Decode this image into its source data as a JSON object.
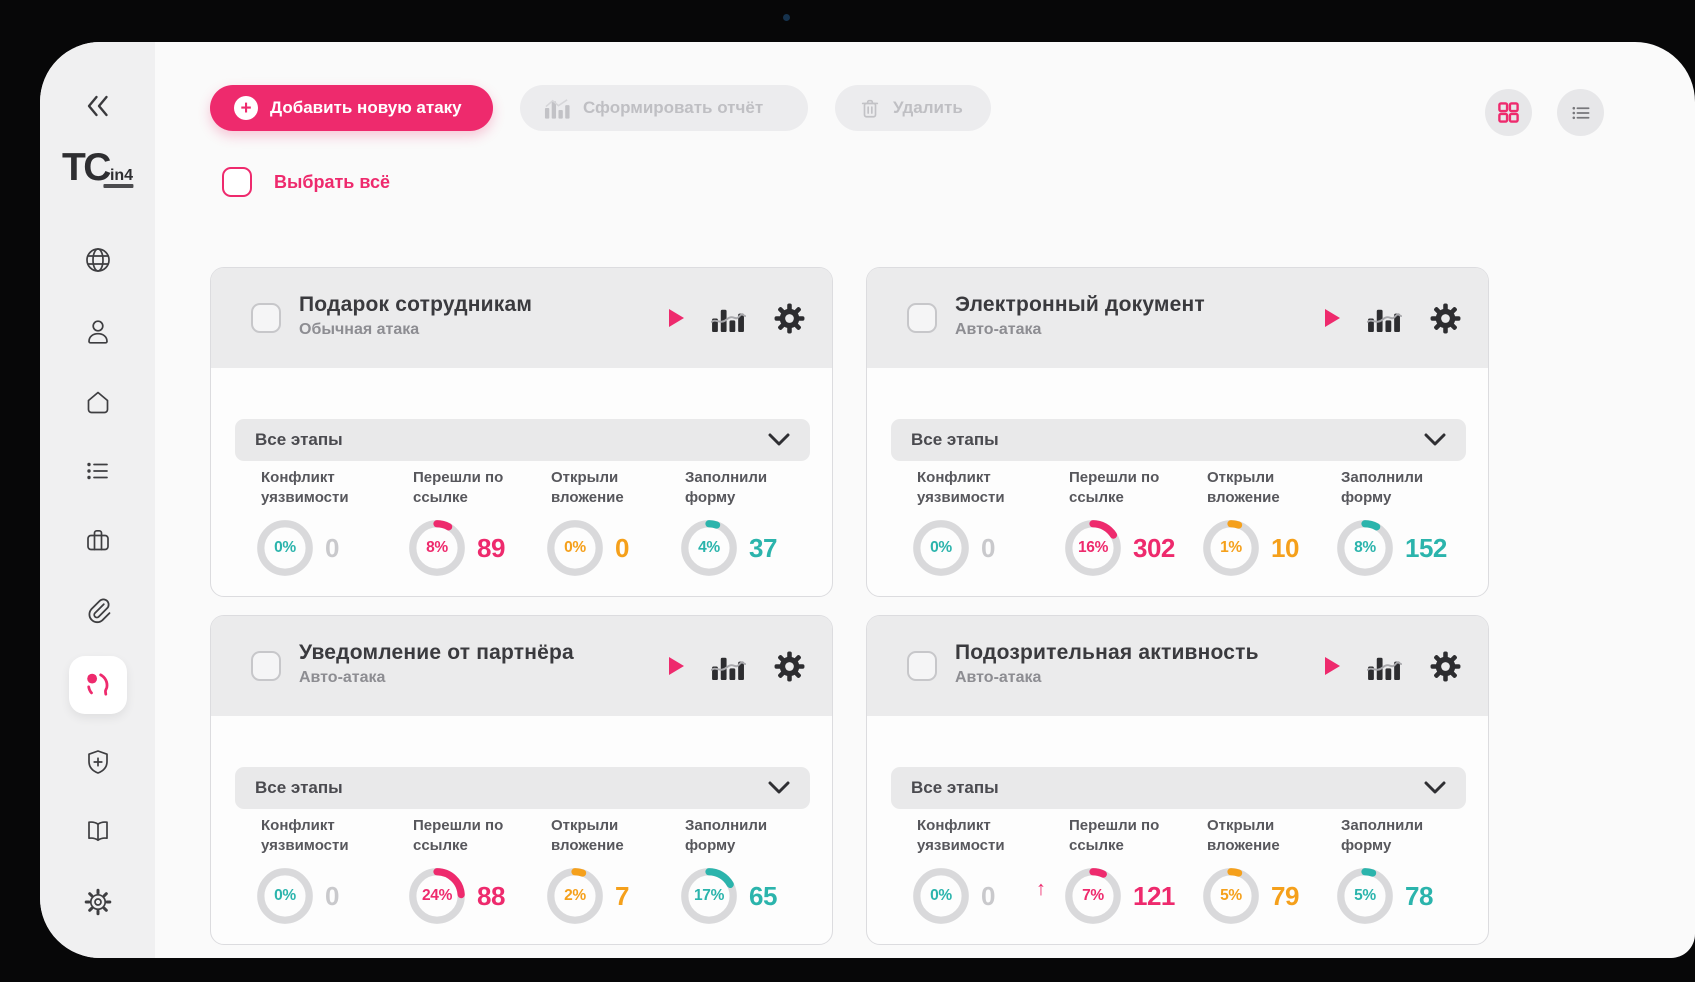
{
  "brand": {
    "logo_main": "TC",
    "logo_sub": "in4"
  },
  "colors": {
    "pink": "#ee2a6d",
    "teal": "#2bb4ac",
    "orange": "#f5a01b",
    "gray_value": "#c9c9cc",
    "track": "#d9d9db"
  },
  "toolbar": {
    "add_attack": "Добавить новую атаку",
    "generate_report": "Сформировать отчёт",
    "delete": "Удалить"
  },
  "view_toggles": {
    "grid_icon": "grid-view",
    "list_icon": "list-view",
    "active": "grid"
  },
  "select_all_label": "Выбрать всё",
  "sidebar": {
    "items": [
      {
        "icon": "collapse-left"
      },
      {
        "icon": "globe"
      },
      {
        "icon": "user"
      },
      {
        "icon": "home"
      },
      {
        "icon": "list"
      },
      {
        "icon": "briefcase"
      },
      {
        "icon": "paperclip"
      },
      {
        "icon": "phishing-head",
        "active": true
      },
      {
        "icon": "shield-plus"
      },
      {
        "icon": "book"
      },
      {
        "icon": "gear"
      }
    ]
  },
  "cards": [
    {
      "title": "Подарок сотрудникам",
      "type": "Обычная атака",
      "filter": "Все этапы",
      "stats": [
        {
          "label": "Конфликт уязвимости",
          "pct": "0%",
          "p": 0,
          "value": "0",
          "color": "teal",
          "value_color": "gray"
        },
        {
          "label": "Перешли по ссылке",
          "pct": "8%",
          "p": 8,
          "value": "89",
          "color": "pink"
        },
        {
          "label": "Открыли вложение",
          "pct": "0%",
          "p": 0,
          "value": "0",
          "color": "orange"
        },
        {
          "label": "Заполнили форму",
          "pct": "4%",
          "p": 4,
          "value": "37",
          "color": "teal"
        }
      ]
    },
    {
      "title": "Электронный документ",
      "type": "Авто-атака",
      "filter": "Все этапы",
      "stats": [
        {
          "label": "Конфликт уязвимости",
          "pct": "0%",
          "p": 0,
          "value": "0",
          "color": "teal",
          "value_color": "gray"
        },
        {
          "label": "Перешли по ссылке",
          "pct": "16%",
          "p": 16,
          "value": "302",
          "color": "pink"
        },
        {
          "label": "Открыли вложение",
          "pct": "1%",
          "p": 1,
          "value": "10",
          "color": "orange"
        },
        {
          "label": "Заполнили форму",
          "pct": "8%",
          "p": 8,
          "value": "152",
          "color": "teal"
        }
      ]
    },
    {
      "title": "Уведомление от партнёра",
      "type": "Авто-атака",
      "filter": "Все этапы",
      "stats": [
        {
          "label": "Конфликт уязвимости",
          "pct": "0%",
          "p": 0,
          "value": "0",
          "color": "teal",
          "value_color": "gray"
        },
        {
          "label": "Перешли по ссылке",
          "pct": "24%",
          "p": 24,
          "value": "88",
          "color": "pink"
        },
        {
          "label": "Открыли вложение",
          "pct": "2%",
          "p": 2,
          "value": "7",
          "color": "orange"
        },
        {
          "label": "Заполнили форму",
          "pct": "17%",
          "p": 17,
          "value": "65",
          "color": "teal"
        }
      ]
    },
    {
      "title": "Подозрительная активность",
      "type": "Авто-атака",
      "filter": "Все этапы",
      "stats": [
        {
          "label": "Конфликт уязвимости",
          "pct": "0%",
          "p": 0,
          "value": "0",
          "color": "teal",
          "value_color": "gray"
        },
        {
          "label": "Перешли по ссылке",
          "pct": "7%",
          "p": 7,
          "value": "121",
          "color": "pink",
          "trend": "↑"
        },
        {
          "label": "Открыли вложение",
          "pct": "5%",
          "p": 5,
          "value": "79",
          "color": "orange"
        },
        {
          "label": "Заполнили форму",
          "pct": "5%",
          "p": 5,
          "value": "78",
          "color": "teal"
        }
      ]
    }
  ]
}
